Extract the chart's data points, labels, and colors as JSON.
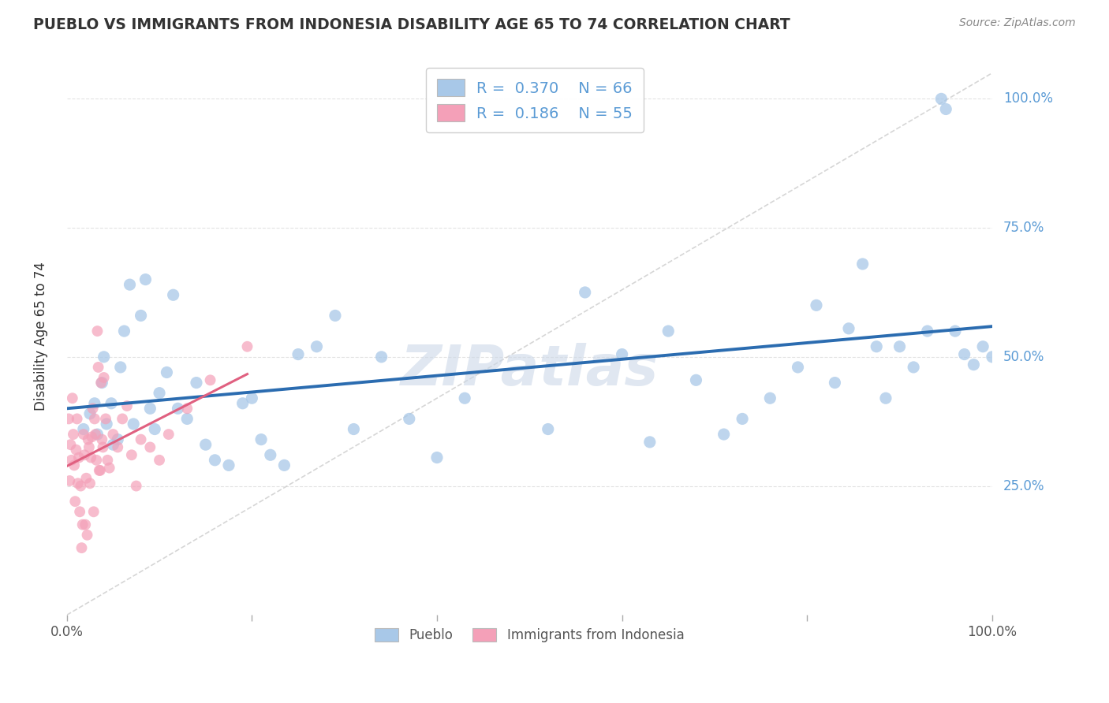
{
  "title": "PUEBLO VS IMMIGRANTS FROM INDONESIA DISABILITY AGE 65 TO 74 CORRELATION CHART",
  "source": "Source: ZipAtlas.com",
  "ylabel": "Disability Age 65 to 74",
  "blue_label": "Pueblo",
  "pink_label": "Immigrants from Indonesia",
  "blue_R": 0.37,
  "blue_N": 66,
  "pink_R": 0.186,
  "pink_N": 55,
  "blue_color": "#a8c8e8",
  "pink_color": "#f4a0b8",
  "blue_line_color": "#2b6cb0",
  "pink_line_color": "#e06080",
  "diag_color": "#cccccc",
  "bg_color": "#ffffff",
  "grid_color": "#dddddd",
  "label_color": "#5b9bd5",
  "title_color": "#333333",
  "source_color": "#888888",
  "watermark_color": "#ccd8e8",
  "xlim": [
    0.0,
    1.0
  ],
  "ylim": [
    0.0,
    1.08
  ],
  "yticks": [
    0.25,
    0.5,
    0.75,
    1.0
  ],
  "ytick_labels": [
    "25.0%",
    "50.0%",
    "75.0%",
    "100.0%"
  ],
  "blue_x": [
    0.018,
    0.025,
    0.03,
    0.033,
    0.038,
    0.04,
    0.043,
    0.048,
    0.05,
    0.055,
    0.058,
    0.062,
    0.068,
    0.072,
    0.08,
    0.085,
    0.09,
    0.095,
    0.1,
    0.108,
    0.115,
    0.12,
    0.13,
    0.14,
    0.15,
    0.16,
    0.175,
    0.19,
    0.2,
    0.21,
    0.22,
    0.235,
    0.25,
    0.27,
    0.29,
    0.31,
    0.34,
    0.37,
    0.4,
    0.43,
    0.52,
    0.56,
    0.6,
    0.63,
    0.65,
    0.68,
    0.71,
    0.73,
    0.76,
    0.79,
    0.81,
    0.83,
    0.845,
    0.86,
    0.875,
    0.885,
    0.9,
    0.915,
    0.93,
    0.945,
    0.95,
    0.96,
    0.97,
    0.98,
    0.99,
    1.0
  ],
  "blue_y": [
    0.36,
    0.39,
    0.41,
    0.35,
    0.45,
    0.5,
    0.37,
    0.41,
    0.33,
    0.34,
    0.48,
    0.55,
    0.64,
    0.37,
    0.58,
    0.65,
    0.4,
    0.36,
    0.43,
    0.47,
    0.62,
    0.4,
    0.38,
    0.45,
    0.33,
    0.3,
    0.29,
    0.41,
    0.42,
    0.34,
    0.31,
    0.29,
    0.505,
    0.52,
    0.58,
    0.36,
    0.5,
    0.38,
    0.305,
    0.42,
    0.36,
    0.625,
    0.505,
    0.335,
    0.55,
    0.455,
    0.35,
    0.38,
    0.42,
    0.48,
    0.6,
    0.45,
    0.555,
    0.68,
    0.52,
    0.42,
    0.52,
    0.48,
    0.55,
    1.0,
    0.98,
    0.55,
    0.505,
    0.485,
    0.52,
    0.5
  ],
  "pink_x": [
    0.002,
    0.003,
    0.004,
    0.005,
    0.006,
    0.007,
    0.008,
    0.009,
    0.01,
    0.011,
    0.012,
    0.013,
    0.014,
    0.015,
    0.016,
    0.017,
    0.018,
    0.019,
    0.02,
    0.021,
    0.022,
    0.023,
    0.024,
    0.025,
    0.026,
    0.027,
    0.028,
    0.029,
    0.03,
    0.031,
    0.032,
    0.033,
    0.034,
    0.035,
    0.036,
    0.037,
    0.038,
    0.039,
    0.04,
    0.042,
    0.044,
    0.046,
    0.05,
    0.055,
    0.06,
    0.065,
    0.07,
    0.075,
    0.08,
    0.09,
    0.1,
    0.11,
    0.13,
    0.155,
    0.195
  ],
  "pink_y": [
    0.38,
    0.26,
    0.33,
    0.3,
    0.42,
    0.35,
    0.29,
    0.22,
    0.32,
    0.38,
    0.255,
    0.305,
    0.2,
    0.25,
    0.13,
    0.175,
    0.35,
    0.31,
    0.175,
    0.265,
    0.155,
    0.34,
    0.325,
    0.255,
    0.305,
    0.345,
    0.4,
    0.2,
    0.38,
    0.35,
    0.3,
    0.55,
    0.48,
    0.28,
    0.28,
    0.45,
    0.34,
    0.325,
    0.46,
    0.38,
    0.3,
    0.285,
    0.35,
    0.325,
    0.38,
    0.405,
    0.31,
    0.25,
    0.34,
    0.325,
    0.3,
    0.35,
    0.4,
    0.455,
    0.52
  ]
}
